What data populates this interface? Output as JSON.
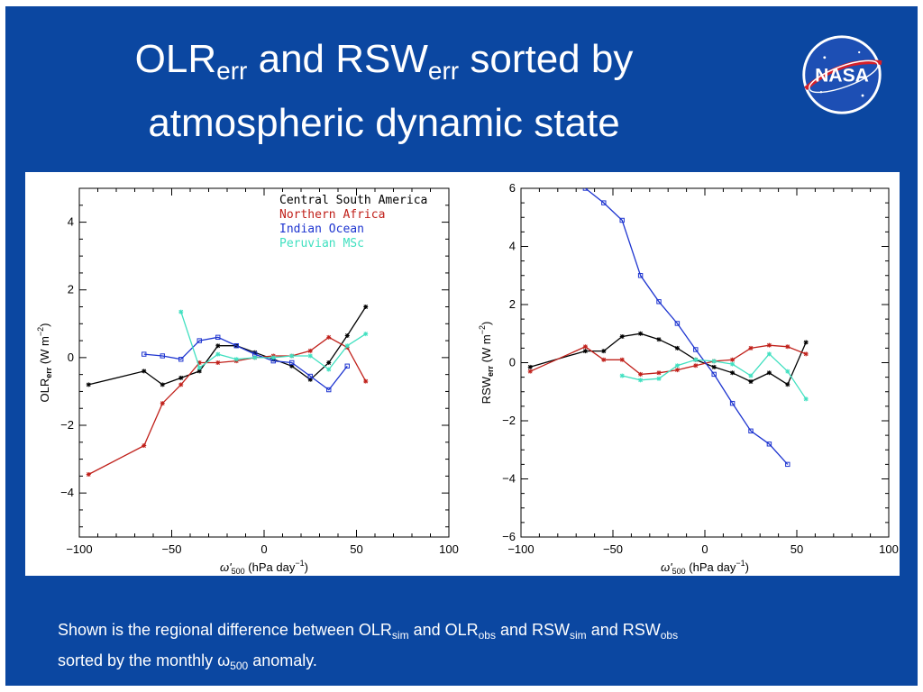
{
  "slide": {
    "title": {
      "part1": "OLR",
      "part1_sub": "err",
      "part2": " and RSW",
      "part2_sub": "err",
      "part3": " sorted by",
      "line2": "atmospheric dynamic state"
    },
    "logo_text": "NASA",
    "caption": {
      "t1": "Shown is the regional difference between OLR",
      "s1": "sim",
      "t2": " and OLR",
      "s2": "obs",
      "t3": " and RSW",
      "s3": "sim",
      "t4": " and RSW",
      "s4": "obs",
      "t5": " sorted by the monthly ω",
      "s5": "500",
      "t6": " anomaly."
    },
    "colors": {
      "background": "#0b47a1",
      "central_south_america": "#000000",
      "northern_africa": "#c0201a",
      "indian_ocean": "#1e35d0",
      "peruvian_msc": "#40e0c0"
    }
  },
  "chart_data": [
    {
      "type": "line",
      "title": "",
      "xlabel": "ω'500 (hPa day⁻¹)",
      "xlabel_main": "ω'",
      "xlabel_sub": "500",
      "xlabel_units": "(hPa day",
      "xlabel_exp": "−1",
      "ylabel_main": "OLR",
      "ylabel_sub": "err",
      "ylabel_units": "(W m",
      "ylabel_exp": "−2",
      "xlim": [
        -100,
        100
      ],
      "ylim": [
        -5.3,
        5
      ],
      "xticks": [
        -100,
        -50,
        0,
        50,
        100
      ],
      "xtick_labels": [
        "−100",
        "−50",
        "0",
        "50",
        "100"
      ],
      "yticks": [
        -4,
        -2,
        0,
        2,
        4
      ],
      "ytick_labels": [
        "−4",
        "−2",
        "0",
        "2",
        "4"
      ],
      "legend": [
        "Central South America",
        "Northern Africa",
        "Indian Ocean",
        "Peruvian MSc"
      ],
      "series": [
        {
          "name": "Central South America",
          "x": [
            -95,
            -65,
            -55,
            -45,
            -35,
            -25,
            -15,
            -5,
            5,
            15,
            25,
            35,
            45,
            55
          ],
          "y": [
            -0.8,
            -0.4,
            -0.8,
            -0.6,
            -0.4,
            0.35,
            0.35,
            0.15,
            -0.05,
            -0.25,
            -0.65,
            -0.15,
            0.65,
            1.5
          ]
        },
        {
          "name": "Northern Africa",
          "x": [
            -95,
            -65,
            -55,
            -45,
            -35,
            -25,
            -15,
            -5,
            5,
            15,
            25,
            35,
            45,
            55
          ],
          "y": [
            -3.45,
            -2.6,
            -1.35,
            -0.8,
            -0.15,
            -0.15,
            -0.1,
            0.0,
            0.05,
            0.05,
            0.2,
            0.6,
            0.3,
            -0.7
          ]
        },
        {
          "name": "Indian Ocean",
          "x": [
            -65,
            -55,
            -45,
            -35,
            -25,
            -15,
            -5,
            5,
            15,
            25,
            35,
            45
          ],
          "y": [
            0.1,
            0.05,
            -0.05,
            0.5,
            0.6,
            0.35,
            0.1,
            -0.1,
            -0.15,
            -0.55,
            -0.95,
            -0.25
          ]
        },
        {
          "name": "Peruvian MSc",
          "x": [
            -45,
            -35,
            -25,
            -15,
            -5,
            5,
            15,
            25,
            35,
            45,
            55
          ],
          "y": [
            1.35,
            -0.3,
            0.1,
            -0.05,
            0.0,
            0.0,
            0.05,
            0.05,
            -0.35,
            0.35,
            0.7
          ]
        }
      ]
    },
    {
      "type": "line",
      "title": "",
      "xlabel": "ω'500 (hPa day⁻¹)",
      "xlabel_main": "ω'",
      "xlabel_sub": "500",
      "xlabel_units": "(hPa day",
      "xlabel_exp": "−1",
      "ylabel_main": "RSW",
      "ylabel_sub": "err",
      "ylabel_units": "(W m",
      "ylabel_exp": "−2",
      "xlim": [
        -100,
        100
      ],
      "ylim": [
        -6,
        6
      ],
      "xticks": [
        -100,
        -50,
        0,
        50,
        100
      ],
      "xtick_labels": [
        "−100",
        "−50",
        "0",
        "50",
        "100"
      ],
      "yticks": [
        -6,
        -4,
        -2,
        0,
        2,
        4,
        6
      ],
      "ytick_labels": [
        "−6",
        "−4",
        "−2",
        "0",
        "2",
        "4",
        "6"
      ],
      "series": [
        {
          "name": "Central South America",
          "x": [
            -95,
            -65,
            -55,
            -45,
            -35,
            -25,
            -15,
            -5,
            5,
            15,
            25,
            35,
            45,
            55
          ],
          "y": [
            -0.15,
            0.4,
            0.4,
            0.9,
            1.0,
            0.8,
            0.5,
            0.1,
            -0.15,
            -0.35,
            -0.65,
            -0.35,
            -0.75,
            0.7
          ]
        },
        {
          "name": "Northern Africa",
          "x": [
            -95,
            -65,
            -55,
            -45,
            -35,
            -25,
            -15,
            -5,
            5,
            15,
            25,
            35,
            45,
            55
          ],
          "y": [
            -0.3,
            0.55,
            0.1,
            0.1,
            -0.4,
            -0.35,
            -0.25,
            -0.1,
            0.05,
            0.1,
            0.5,
            0.6,
            0.55,
            0.3
          ]
        },
        {
          "name": "Indian Ocean",
          "x": [
            -65,
            -55,
            -45,
            -35,
            -25,
            -15,
            -5,
            5,
            15,
            25,
            35,
            45
          ],
          "y": [
            6.0,
            5.5,
            4.9,
            3.0,
            2.1,
            1.35,
            0.45,
            -0.4,
            -1.4,
            -2.35,
            -2.8,
            -3.5
          ]
        },
        {
          "name": "Peruvian MSc",
          "x": [
            -45,
            -35,
            -25,
            -15,
            -5,
            5,
            15,
            25,
            35,
            45,
            55
          ],
          "y": [
            -0.45,
            -0.6,
            -0.55,
            -0.1,
            0.1,
            0.05,
            -0.05,
            -0.45,
            0.3,
            -0.3,
            -1.25
          ]
        }
      ]
    }
  ]
}
